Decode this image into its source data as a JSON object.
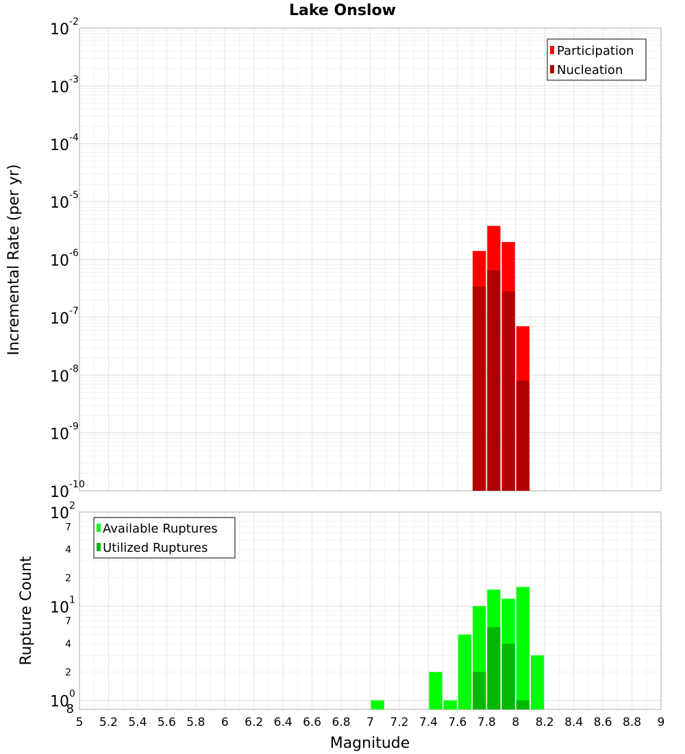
{
  "chart_data": [
    {
      "type": "bar",
      "title": "Lake Onslow",
      "xlabel": "",
      "ylabel": "Incremental Rate (per yr)",
      "yscale": "log",
      "xlim": [
        5,
        9
      ],
      "ylim": [
        1e-10,
        0.01
      ],
      "y_ticks": [
        {
          "base": "10",
          "exp": "-10",
          "value": 1e-10
        },
        {
          "base": "10",
          "exp": "-9",
          "value": 1e-09
        },
        {
          "base": "10",
          "exp": "-8",
          "value": 1e-08
        },
        {
          "base": "10",
          "exp": "-7",
          "value": 1e-07
        },
        {
          "base": "10",
          "exp": "-6",
          "value": 1e-06
        },
        {
          "base": "10",
          "exp": "-5",
          "value": 1e-05
        },
        {
          "base": "10",
          "exp": "-4",
          "value": 0.0001
        },
        {
          "base": "10",
          "exp": "-3",
          "value": 0.001
        },
        {
          "base": "10",
          "exp": "-2",
          "value": 0.01
        }
      ],
      "legend_position": "top-right",
      "bin_width": 0.1,
      "series": [
        {
          "name": "Participation",
          "color": "#ff0000",
          "x": [
            7.75,
            7.85,
            7.95,
            8.05
          ],
          "values": [
            1.4e-06,
            3.8e-06,
            2e-06,
            7e-08
          ]
        },
        {
          "name": "Nucleation",
          "color": "#b00000",
          "x": [
            7.75,
            7.85,
            7.95,
            8.05
          ],
          "values": [
            3.4e-07,
            6.5e-07,
            2.8e-07,
            8e-09
          ]
        }
      ]
    },
    {
      "type": "bar",
      "title": "",
      "xlabel": "Magnitude",
      "ylabel": "Rupture Count",
      "yscale": "log",
      "xlim": [
        5,
        9
      ],
      "ylim": [
        0.8,
        100
      ],
      "y_ticks": [
        {
          "base": "10",
          "exp": "0",
          "value": 1
        },
        {
          "base": "10",
          "exp": "1",
          "value": 10
        },
        {
          "base": "10",
          "exp": "2",
          "value": 100
        }
      ],
      "y_minor_ticks": [
        {
          "label": "8",
          "value": 0.8
        },
        {
          "label": "2",
          "value": 2
        },
        {
          "label": "4",
          "value": 4
        },
        {
          "label": "7",
          "value": 7
        },
        {
          "label": "2",
          "value": 20
        },
        {
          "label": "4",
          "value": 40
        },
        {
          "label": "7",
          "value": 70
        }
      ],
      "x_ticks": [
        "5",
        "5.2",
        "5.4",
        "5.6",
        "5.8",
        "6",
        "6.2",
        "6.4",
        "6.6",
        "6.8",
        "7",
        "7.2",
        "7.4",
        "7.6",
        "7.8",
        "8",
        "8.2",
        "8.4",
        "8.6",
        "8.8",
        "9"
      ],
      "legend_position": "top-left",
      "bin_width": 0.1,
      "series": [
        {
          "name": "Available Ruptures",
          "color": "#00ff00",
          "x": [
            7.05,
            7.45,
            7.55,
            7.65,
            7.75,
            7.85,
            7.95,
            8.05,
            8.15
          ],
          "values": [
            1,
            2,
            1,
            5,
            10,
            15,
            12,
            16,
            3
          ]
        },
        {
          "name": "Utilized Ruptures",
          "color": "#00b800",
          "x": [
            7.75,
            7.85,
            7.95,
            8.05
          ],
          "values": [
            2,
            6,
            4,
            1
          ]
        }
      ]
    }
  ]
}
